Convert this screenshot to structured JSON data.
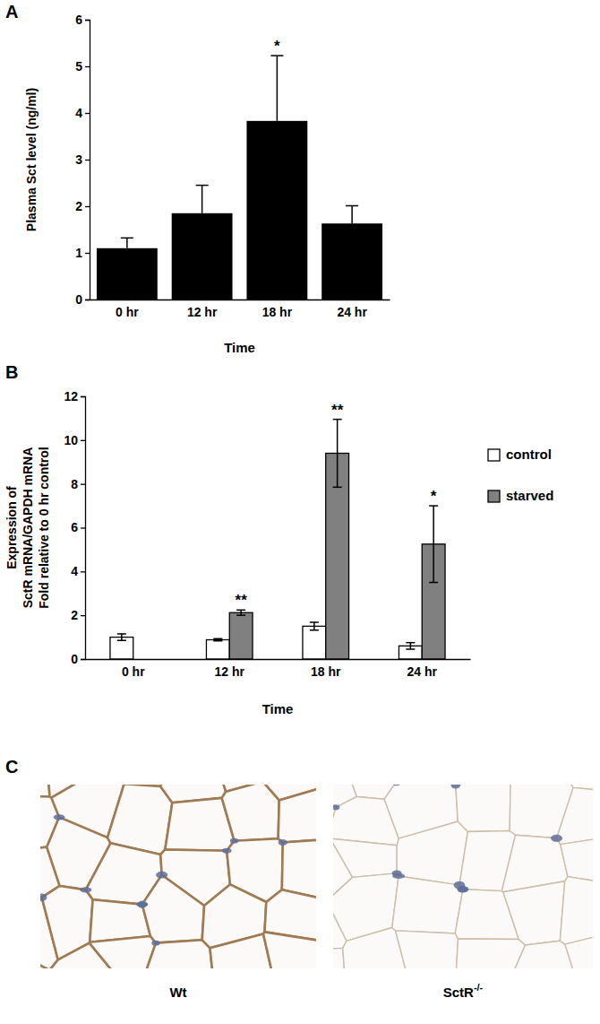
{
  "chart_data": [
    {
      "type": "bar",
      "panel_label": "A",
      "categories": [
        "0 hr",
        "12 hr",
        "18 hr",
        "24 hr"
      ],
      "values": [
        1.1,
        1.85,
        3.83,
        1.63
      ],
      "errors": [
        0.22,
        0.6,
        1.4,
        0.38
      ],
      "significance": [
        null,
        null,
        "*",
        null
      ],
      "color": "#000000",
      "x_label": "Time",
      "y_label": "Plasma Sct level (ng/ml)",
      "ylim": [
        0,
        6
      ],
      "yticks": [
        0,
        1,
        2,
        3,
        4,
        5,
        6
      ]
    },
    {
      "type": "bar",
      "panel_label": "B",
      "categories": [
        "0 hr",
        "12 hr",
        "18 hr",
        "24 hr"
      ],
      "series": [
        {
          "name": "control",
          "color": "#ffffff",
          "values": [
            1.0,
            0.88,
            1.5,
            0.6
          ],
          "errors": [
            0.15,
            0.05,
            0.18,
            0.15
          ]
        },
        {
          "name": "starved",
          "color": "#808080",
          "values": [
            null,
            2.12,
            9.4,
            5.25
          ],
          "errors": [
            null,
            0.12,
            1.55,
            1.75
          ],
          "significance": [
            null,
            "**",
            "**",
            "*"
          ]
        }
      ],
      "x_label": "Time",
      "y_label": [
        "Expression of",
        "SctR mRNA/GAPDH mRNA",
        "Fold relative to 0 hr control"
      ],
      "ylim": [
        0,
        12
      ],
      "yticks": [
        0,
        2,
        4,
        6,
        8,
        10,
        12
      ],
      "legend": "right"
    }
  ],
  "panel_c": {
    "panel_label": "C",
    "images": [
      {
        "label": "Wt"
      },
      {
        "label": "SctR",
        "label_superscript": "-/-"
      }
    ]
  }
}
